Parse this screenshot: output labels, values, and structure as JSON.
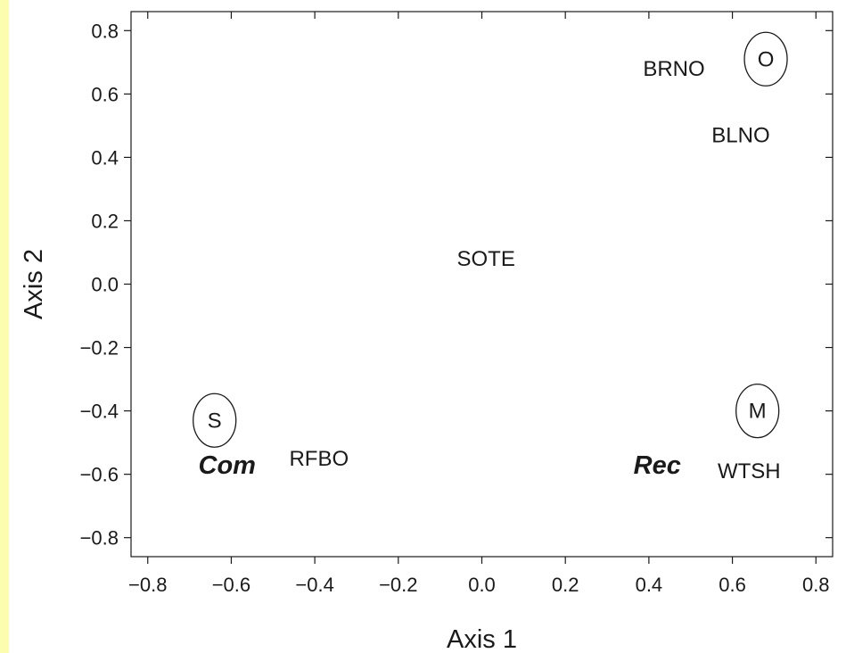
{
  "theme": {
    "left_strip_color": "#fdfdb0",
    "ink_color": "#1a1a1a"
  },
  "chart_data": {
    "type": "scatter",
    "xlabel": "Axis 1",
    "ylabel": "Axis 2",
    "xlim": [
      -0.84,
      0.84
    ],
    "ylim": [
      -0.86,
      0.86
    ],
    "xticks": [
      -0.8,
      -0.6,
      -0.4,
      -0.2,
      0.0,
      0.2,
      0.4,
      0.6,
      0.8
    ],
    "yticks": [
      -0.8,
      -0.6,
      -0.4,
      -0.2,
      0.0,
      0.2,
      0.4,
      0.6,
      0.8
    ],
    "xtick_labels": [
      "−0.8",
      "−0.6",
      "−0.4",
      "−0.2",
      "0.0",
      "0.2",
      "0.4",
      "0.6",
      "0.8"
    ],
    "ytick_labels": [
      "−0.8",
      "−0.6",
      "−0.4",
      "−0.2",
      "0.0",
      "0.2",
      "0.4",
      "0.6",
      "0.8"
    ],
    "grid": false,
    "species_points": [
      {
        "label": "BRNO",
        "x": 0.46,
        "y": 0.68
      },
      {
        "label": "BLNO",
        "x": 0.62,
        "y": 0.47
      },
      {
        "label": "SOTE",
        "x": 0.01,
        "y": 0.08
      },
      {
        "label": "RFBO",
        "x": -0.39,
        "y": -0.55
      },
      {
        "label": "WTSH",
        "x": 0.64,
        "y": -0.59
      }
    ],
    "group_labels": [
      {
        "label": "Com",
        "x": -0.61,
        "y": -0.57
      },
      {
        "label": "Rec",
        "x": 0.42,
        "y": -0.57
      }
    ],
    "circled_points": [
      {
        "label": "O",
        "x": 0.68,
        "y": 0.71
      },
      {
        "label": "S",
        "x": -0.64,
        "y": -0.43
      },
      {
        "label": "M",
        "x": 0.66,
        "y": -0.4
      }
    ]
  }
}
